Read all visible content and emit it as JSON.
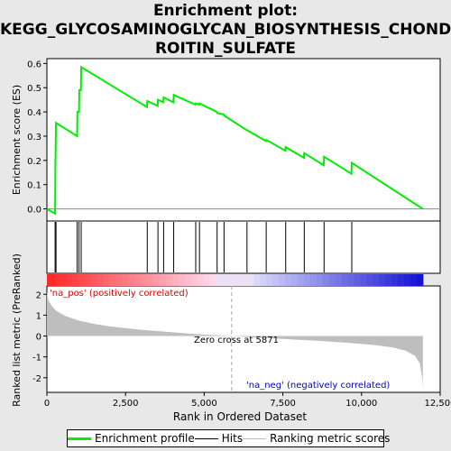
{
  "title_line1": "Enrichment plot:",
  "title_line2": "KEGG_GLYCOSAMINOGLYCAN_BIOSYNTHESIS_CHOND",
  "title_line3": "ROITIN_SULFATE",
  "colors": {
    "es_line": "#00ee00",
    "hits": "#000000",
    "metric_fill": "#bebebe",
    "pos_label": "#dd0000",
    "neg_label": "#0000cc",
    "zero_line": "#aaaaaa"
  },
  "chart_data": {
    "type": "line",
    "xlabel": "Rank in Ordered Dataset",
    "xlim": [
      0,
      12500
    ],
    "x_ticks": [
      "0",
      "2,500",
      "5,000",
      "7,500",
      "10,000",
      "12,500"
    ],
    "es_panel": {
      "ylabel": "Enrichment score (ES)",
      "ylim": [
        -0.05,
        0.62
      ],
      "y_ticks": [
        "0.0",
        "0.1",
        "0.2",
        "0.3",
        "0.4",
        "0.5",
        "0.6"
      ],
      "points": [
        [
          0,
          0
        ],
        [
          260,
          -0.02
        ],
        [
          270,
          0.17
        ],
        [
          290,
          0.355
        ],
        [
          960,
          0.3
        ],
        [
          970,
          0.4
        ],
        [
          1020,
          0.4
        ],
        [
          1030,
          0.49
        ],
        [
          1080,
          0.49
        ],
        [
          1090,
          0.585
        ],
        [
          3180,
          0.42
        ],
        [
          3190,
          0.445
        ],
        [
          3520,
          0.425
        ],
        [
          3530,
          0.45
        ],
        [
          3700,
          0.44
        ],
        [
          3710,
          0.46
        ],
        [
          4020,
          0.44
        ],
        [
          4030,
          0.47
        ],
        [
          4720,
          0.43
        ],
        [
          4730,
          0.435
        ],
        [
          4840,
          0.43
        ],
        [
          4850,
          0.435
        ],
        [
          5400,
          0.4
        ],
        [
          5410,
          0.395
        ],
        [
          5620,
          0.39
        ],
        [
          5630,
          0.385
        ],
        [
          6350,
          0.325
        ],
        [
          6360,
          0.325
        ],
        [
          6960,
          0.28
        ],
        [
          6970,
          0.285
        ],
        [
          7580,
          0.24
        ],
        [
          7590,
          0.255
        ],
        [
          8170,
          0.21
        ],
        [
          8180,
          0.23
        ],
        [
          8800,
          0.18
        ],
        [
          8810,
          0.215
        ],
        [
          9680,
          0.145
        ],
        [
          9690,
          0.19
        ],
        [
          11950,
          0.0
        ]
      ]
    },
    "hits": [
      260,
      290,
      960,
      1020,
      1090,
      3190,
      3530,
      3710,
      4030,
      4730,
      4850,
      5410,
      5630,
      6360,
      6970,
      7590,
      8180,
      8810,
      9690
    ],
    "metric_panel": {
      "ylabel": "Ranked list metric (PreRanked)",
      "ylim": [
        -2.7,
        2.4
      ],
      "y_ticks": [
        "-2",
        "-1",
        "0",
        "1",
        "2"
      ],
      "zero_cross_label": "Zero cross at 5871",
      "zero_cross": 5871,
      "pos_label": "'na_pos' (positively correlated)",
      "neg_label": "'na_neg' (negatively correlated)",
      "curve": [
        [
          0,
          2.1
        ],
        [
          50,
          1.7
        ],
        [
          150,
          1.45
        ],
        [
          300,
          1.2
        ],
        [
          600,
          0.95
        ],
        [
          1000,
          0.75
        ],
        [
          1500,
          0.58
        ],
        [
          2000,
          0.46
        ],
        [
          2500,
          0.38
        ],
        [
          3000,
          0.3
        ],
        [
          3500,
          0.24
        ],
        [
          4000,
          0.18
        ],
        [
          4500,
          0.12
        ],
        [
          5000,
          0.07
        ],
        [
          5500,
          0.03
        ],
        [
          5871,
          0
        ],
        [
          6500,
          -0.06
        ],
        [
          7000,
          -0.1
        ],
        [
          7500,
          -0.14
        ],
        [
          8000,
          -0.18
        ],
        [
          8500,
          -0.22
        ],
        [
          9000,
          -0.27
        ],
        [
          9500,
          -0.32
        ],
        [
          10000,
          -0.38
        ],
        [
          10500,
          -0.45
        ],
        [
          11000,
          -0.55
        ],
        [
          11400,
          -0.7
        ],
        [
          11700,
          -0.95
        ],
        [
          11850,
          -1.3
        ],
        [
          11930,
          -2.0
        ],
        [
          11950,
          -2.5
        ]
      ]
    },
    "total": 11950
  },
  "legend": {
    "es_label": "Enrichment profile",
    "hits_label": "Hits",
    "metric_label": "Ranking metric scores"
  }
}
